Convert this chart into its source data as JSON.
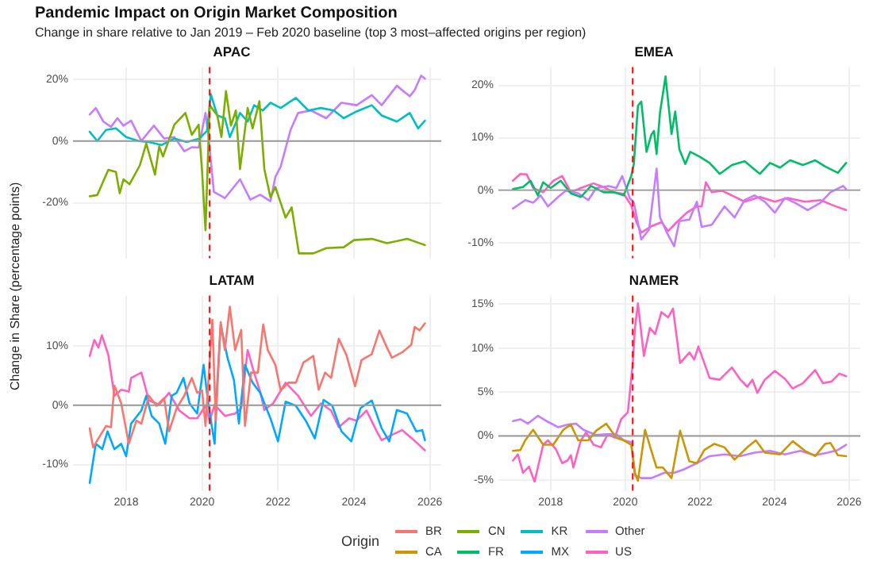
{
  "chart_data": [
    {
      "type": "line",
      "title": "APAC",
      "annotations": [
        "Pandemic Impact on Origin Market Composition",
        "Change in share relative to Jan 2019 – Feb 2020 baseline (top 3 most–affected origins per region)"
      ],
      "ylabel": "Change in Share (percentage points)",
      "legend": "bottom",
      "legend_title": "Origin",
      "grid": true,
      "tick_labels": "y",
      "xlim": [
        2016.6,
        2026.3
      ],
      "xticks": [
        2018,
        2020,
        2022,
        2024,
        2026
      ],
      "ylim": [
        -38,
        24
      ],
      "yticks": [
        {
          "value": -20,
          "label": "-20%"
        },
        {
          "value": 0,
          "label": "0%"
        },
        {
          "value": 20,
          "label": "20%"
        }
      ],
      "ref_lines": [
        {
          "axis": "y",
          "value": 0,
          "color": "#999999",
          "line_style": "solid"
        },
        {
          "axis": "x",
          "value": 2020.2,
          "color": "#ff0000",
          "line_style": "dashed"
        }
      ],
      "series": [
        {
          "name": "CN",
          "color": "#7cae00",
          "x": [
            2017.04,
            2017.24,
            2017.53,
            2017.73,
            2017.83,
            2017.93,
            2018.09,
            2018.36,
            2018.53,
            2018.76,
            2018.87,
            2018.97,
            2019.27,
            2019.56,
            2019.73,
            2019.91,
            2020.0,
            2020.09,
            2020.2,
            2020.4,
            2020.51,
            2020.63,
            2020.76,
            2020.89,
            2021.0,
            2021.2,
            2021.33,
            2021.51,
            2021.64,
            2021.8,
            2021.93,
            2022.2,
            2022.36,
            2022.55,
            2022.93,
            2023.27,
            2023.73,
            2024.0,
            2024.47,
            2024.87,
            2025.4,
            2025.87
          ],
          "values": [
            -17.9,
            -17.5,
            -9.3,
            -10,
            -16.9,
            -12.4,
            -14,
            -7.9,
            -0.8,
            -10.9,
            -1.7,
            -5,
            5.3,
            9.1,
            2,
            5.3,
            -9.9,
            -28.9,
            11.6,
            8.3,
            1.3,
            16.2,
            5,
            9.9,
            -9.1,
            10.7,
            4.1,
            12.9,
            -9.1,
            -18.2,
            -14.9,
            -24.8,
            -21.5,
            -36.4,
            -36.4,
            -34.7,
            -34.4,
            -32.1,
            -31.7,
            -33.1,
            -31.7,
            -33.7
          ]
        },
        {
          "name": "KR",
          "color": "#00bfc4",
          "x": [
            2017.04,
            2017.24,
            2017.47,
            2017.73,
            2018.0,
            2018.33,
            2018.6,
            2018.93,
            2019.27,
            2019.6,
            2019.93,
            2020.13,
            2020.23,
            2020.4,
            2020.6,
            2020.73,
            2021.0,
            2021.2,
            2021.37,
            2021.6,
            2021.8,
            2022.07,
            2022.47,
            2022.8,
            2023.13,
            2023.47,
            2023.73,
            2024.07,
            2024.47,
            2024.73,
            2025.13,
            2025.47,
            2025.69,
            2025.87
          ],
          "values": [
            3,
            0,
            3.6,
            4.1,
            1.3,
            0,
            -0.3,
            -1.3,
            0.8,
            -0.3,
            0.8,
            3.3,
            15.2,
            8.3,
            7.4,
            1.3,
            9.1,
            6.3,
            11.6,
            9.9,
            12.4,
            10.7,
            14,
            9.9,
            10.7,
            9.9,
            7.4,
            9.6,
            11.6,
            8.3,
            6.3,
            9.1,
            4.1,
            6.6
          ]
        },
        {
          "name": "Other",
          "color": "#c77cff",
          "x": [
            2017.04,
            2017.2,
            2017.4,
            2017.6,
            2017.77,
            2017.93,
            2018.13,
            2018.4,
            2018.73,
            2019.0,
            2019.27,
            2019.53,
            2019.73,
            2019.91,
            2020.09,
            2020.17,
            2020.31,
            2020.6,
            2021.0,
            2021.27,
            2021.53,
            2021.8,
            2021.93,
            2022.07,
            2022.33,
            2022.53,
            2022.87,
            2023.27,
            2023.67,
            2024.07,
            2024.47,
            2024.73,
            2025.13,
            2025.47,
            2025.6,
            2025.77,
            2025.87
          ],
          "values": [
            8.6,
            10.7,
            6.3,
            4.6,
            7.4,
            5,
            6.6,
            0,
            5,
            0.8,
            1.3,
            -3.3,
            -2,
            -2.1,
            9.1,
            1.3,
            -16.5,
            -18.5,
            -12.4,
            -19,
            -17.4,
            -19.5,
            -11.6,
            -8.3,
            3.6,
            9.1,
            9.9,
            7.4,
            12.4,
            11.6,
            14.9,
            11.6,
            17.9,
            14.5,
            16.5,
            21.2,
            20.2
          ]
        }
      ]
    },
    {
      "type": "line",
      "title": "EMEA",
      "legend": "bottom",
      "grid": true,
      "tick_labels": "y",
      "xlim": [
        2016.6,
        2026.3
      ],
      "xticks": [
        2018,
        2020,
        2022,
        2024,
        2026
      ],
      "ylim": [
        -13,
        23.5
      ],
      "yticks": [
        {
          "value": -10,
          "label": "-10%"
        },
        {
          "value": 0,
          "label": "0%"
        },
        {
          "value": 10,
          "label": "10%"
        },
        {
          "value": 20,
          "label": "20%"
        }
      ],
      "ref_lines": [
        {
          "axis": "y",
          "value": 0,
          "color": "#999999",
          "line_style": "solid"
        },
        {
          "axis": "x",
          "value": 2020.2,
          "color": "#ff0000",
          "line_style": "dashed"
        }
      ],
      "series": [
        {
          "name": "FR",
          "color": "#00be67",
          "x": [
            2016.99,
            2017.26,
            2017.46,
            2017.66,
            2017.8,
            2018.0,
            2018.27,
            2018.54,
            2018.81,
            2019.08,
            2019.42,
            2019.69,
            2019.96,
            2020.16,
            2020.23,
            2020.34,
            2020.43,
            2020.57,
            2020.7,
            2020.77,
            2020.84,
            2020.93,
            2021.08,
            2021.24,
            2021.34,
            2021.45,
            2021.61,
            2021.74,
            2021.99,
            2022.26,
            2022.53,
            2022.86,
            2023.2,
            2023.61,
            2023.88,
            2024.15,
            2024.42,
            2024.76,
            2025.09,
            2025.36,
            2025.7,
            2025.92
          ],
          "values": [
            0.2,
            0.6,
            1.8,
            -1,
            1.5,
            0.4,
            1.8,
            -0.6,
            -1.3,
            0.8,
            -0.4,
            -0.4,
            -1,
            2.7,
            5,
            16.1,
            16.9,
            7.3,
            10.6,
            11.3,
            6.9,
            14.7,
            21.7,
            10.7,
            15,
            7.8,
            5,
            7.3,
            6.4,
            5.2,
            3.1,
            4.8,
            5.5,
            3.1,
            5.2,
            4.3,
            5.7,
            4.8,
            5.7,
            4.5,
            3.3,
            5.2
          ]
        },
        {
          "name": "Other",
          "color": "#c77cff",
          "x": [
            2016.99,
            2017.32,
            2017.53,
            2017.73,
            2017.93,
            2018.2,
            2018.41,
            2018.74,
            2019.01,
            2019.22,
            2019.55,
            2019.76,
            2019.92,
            2020.12,
            2020.23,
            2020.43,
            2020.64,
            2020.84,
            2020.93,
            2021.11,
            2021.31,
            2021.45,
            2021.72,
            2021.92,
            2022.05,
            2022.32,
            2022.66,
            2022.93,
            2023.2,
            2023.47,
            2023.74,
            2024.01,
            2024.28,
            2024.55,
            2024.89,
            2025.23,
            2025.5,
            2025.84,
            2025.92
          ],
          "values": [
            -3.5,
            -1.9,
            -2.4,
            -1,
            -3.1,
            -1.3,
            -0.1,
            -0.6,
            -1.9,
            0.4,
            0.8,
            0.4,
            2.7,
            -1.5,
            -2.4,
            -9.4,
            -7.5,
            4.1,
            -5.2,
            -8,
            -10.7,
            -5.9,
            -5.6,
            -2.2,
            -7,
            -6.6,
            -3.1,
            -5.2,
            -1.9,
            -1,
            -2.2,
            -4.3,
            -1.5,
            -2.4,
            -3.8,
            -2.4,
            -0.4,
            0.8,
            0.2
          ]
        },
        {
          "name": "US",
          "color": "#ff61c3",
          "x": [
            2016.99,
            2017.19,
            2017.36,
            2017.53,
            2017.8,
            2018.07,
            2018.31,
            2018.54,
            2018.81,
            2019.15,
            2019.42,
            2019.69,
            2019.96,
            2020.16,
            2020.3,
            2020.43,
            2020.7,
            2020.97,
            2021.15,
            2021.38,
            2021.65,
            2021.92,
            2022.05,
            2022.16,
            2022.32,
            2022.59,
            2022.86,
            2023.2,
            2023.61,
            2024.01,
            2024.35,
            2024.82,
            2025.23,
            2025.57,
            2025.92
          ],
          "values": [
            1.8,
            3.1,
            3,
            0.4,
            -0.4,
            1.8,
            2.7,
            -0.4,
            0.4,
            1.3,
            0.6,
            -0.4,
            -0.7,
            -2.9,
            -6.1,
            -8.1,
            -6.9,
            -6.1,
            -7.8,
            -6.1,
            -4.3,
            -3.1,
            -3.1,
            1.5,
            -0.4,
            -0.1,
            -1,
            -2.2,
            -1.3,
            -2.2,
            -1.5,
            -2.2,
            -1.9,
            -2.9,
            -3.8
          ]
        }
      ]
    },
    {
      "type": "line",
      "title": "LATAM",
      "legend": "bottom",
      "grid": true,
      "xlim": [
        2016.6,
        2026.3
      ],
      "xticks": [
        2018,
        2020,
        2022,
        2024,
        2026
      ],
      "ylim": [
        -14.5,
        18.5
      ],
      "yticks": [
        {
          "value": -10,
          "label": "-10%"
        },
        {
          "value": 0,
          "label": "0%"
        },
        {
          "value": 10,
          "label": "10%"
        }
      ],
      "ref_lines": [
        {
          "axis": "y",
          "value": 0,
          "color": "#999999",
          "line_style": "solid"
        },
        {
          "axis": "x",
          "value": 2020.2,
          "color": "#ff0000",
          "line_style": "dashed"
        }
      ],
      "series": [
        {
          "name": "BR",
          "color": "#f8766d",
          "x": [
            2017.04,
            2017.13,
            2017.27,
            2017.47,
            2017.6,
            2017.69,
            2017.87,
            2018.07,
            2018.27,
            2018.4,
            2018.6,
            2018.8,
            2019.0,
            2019.13,
            2019.33,
            2019.53,
            2019.73,
            2019.87,
            2020.0,
            2020.09,
            2020.27,
            2020.36,
            2020.49,
            2020.6,
            2020.73,
            2020.87,
            2021.03,
            2021.13,
            2021.29,
            2021.47,
            2021.61,
            2021.73,
            2021.93,
            2022.07,
            2022.27,
            2022.47,
            2022.67,
            2022.93,
            2023.07,
            2023.24,
            2023.4,
            2023.6,
            2023.8,
            2024.03,
            2024.2,
            2024.47,
            2024.67,
            2024.87,
            2025.0,
            2025.27,
            2025.51,
            2025.6,
            2025.73,
            2025.87
          ],
          "values": [
            -3.9,
            -7.1,
            -5.6,
            -3.5,
            -3.7,
            3.3,
            0.3,
            -6.5,
            -2.6,
            -3.1,
            1.6,
            -0.1,
            1.2,
            -4.4,
            -0.5,
            1.6,
            4.6,
            2.1,
            2.5,
            -3.5,
            14.4,
            -2.6,
            14,
            9.3,
            16.6,
            9.3,
            12.7,
            -3.5,
            5.5,
            5.5,
            13.6,
            9.3,
            6.8,
            2.5,
            3.8,
            3.8,
            7.2,
            8.3,
            2.6,
            5.5,
            4.6,
            11.2,
            8.5,
            3.2,
            7.6,
            8.6,
            12.6,
            9.7,
            8,
            8.9,
            10.2,
            13.2,
            12.6,
            13.8
          ]
        },
        {
          "name": "MX",
          "color": "#00a9ff",
          "x": [
            2017.04,
            2017.2,
            2017.37,
            2017.51,
            2017.69,
            2017.87,
            2018.0,
            2018.13,
            2018.4,
            2018.53,
            2018.67,
            2018.87,
            2019.03,
            2019.2,
            2019.33,
            2019.51,
            2019.67,
            2019.87,
            2020.04,
            2020.17,
            2020.33,
            2020.4,
            2020.49,
            2020.67,
            2020.84,
            2020.97,
            2021.13,
            2021.33,
            2021.53,
            2021.8,
            2022.0,
            2022.2,
            2022.47,
            2022.73,
            2022.97,
            2023.2,
            2023.43,
            2023.67,
            2023.93,
            2024.17,
            2024.47,
            2024.73,
            2024.93,
            2025.13,
            2025.4,
            2025.64,
            2025.8,
            2025.87
          ],
          "values": [
            -13.1,
            -6.5,
            -7.4,
            -4.4,
            -7.4,
            -6.5,
            -8.6,
            -3.1,
            -0.9,
            1.6,
            -1.8,
            -3.1,
            -6.5,
            1.6,
            2.1,
            4.6,
            0.3,
            -1.4,
            6.8,
            -0.1,
            -6.5,
            3.8,
            13.6,
            8,
            4.2,
            -3.1,
            6.8,
            3.8,
            2.1,
            -2.2,
            -6.1,
            0.6,
            -0.1,
            -2.6,
            -5.6,
            0.9,
            -0.1,
            -4.4,
            -6.1,
            -0.5,
            0.8,
            -3.9,
            -6.1,
            -0.8,
            -1.4,
            -4.4,
            -4.2,
            -5.9
          ]
        },
        {
          "name": "US",
          "color": "#ff61c3",
          "x": [
            2017.04,
            2017.16,
            2017.27,
            2017.36,
            2017.53,
            2017.69,
            2017.87,
            2018.07,
            2018.13,
            2018.4,
            2018.6,
            2018.87,
            2019.13,
            2019.4,
            2019.67,
            2019.87,
            2020.09,
            2020.2,
            2020.33,
            2020.6,
            2020.87,
            2021.03,
            2021.2,
            2021.37,
            2021.53,
            2021.64,
            2021.87,
            2022.2,
            2022.53,
            2022.87,
            2023.13,
            2023.4,
            2023.6,
            2023.87,
            2024.07,
            2024.33,
            2024.6,
            2024.73,
            2025.0,
            2025.27,
            2025.53,
            2025.87
          ],
          "values": [
            8.3,
            11,
            9.7,
            11.8,
            8.5,
            1.6,
            2.6,
            2.3,
            4.6,
            5.5,
            0.8,
            0.1,
            2.1,
            -0.9,
            -2.2,
            -2.2,
            -0.1,
            -2.6,
            0.1,
            -1.8,
            -1.4,
            -0.5,
            9.3,
            5.5,
            2.3,
            -0.8,
            0.3,
            3.8,
            1.6,
            -1.8,
            0.3,
            -0.9,
            -3.7,
            -2.2,
            -2.6,
            -0.9,
            -4.4,
            -5.9,
            -5,
            -4.2,
            -5.6,
            -7.6
          ]
        }
      ]
    },
    {
      "type": "line",
      "title": "NAMER",
      "legend": "bottom",
      "grid": true,
      "xlim": [
        2016.6,
        2026.3
      ],
      "xticks": [
        2018,
        2020,
        2022,
        2024,
        2026
      ],
      "ylim": [
        -6.3,
        16
      ],
      "yticks": [
        {
          "value": -5,
          "label": "-5%"
        },
        {
          "value": 0,
          "label": "0%"
        },
        {
          "value": 5,
          "label": "5%"
        },
        {
          "value": 10,
          "label": "10%"
        },
        {
          "value": 15,
          "label": "15%"
        }
      ],
      "ref_lines": [
        {
          "axis": "y",
          "value": 0,
          "color": "#999999",
          "line_style": "solid"
        },
        {
          "axis": "x",
          "value": 2020.2,
          "color": "#ff0000",
          "line_style": "dashed"
        }
      ],
      "series": [
        {
          "name": "CA",
          "color": "#cd9600",
          "x": [
            2016.99,
            2017.19,
            2017.32,
            2017.53,
            2017.8,
            2018.07,
            2018.34,
            2018.54,
            2018.74,
            2019.01,
            2019.22,
            2019.49,
            2019.76,
            2019.96,
            2020.16,
            2020.26,
            2020.34,
            2020.53,
            2020.7,
            2020.84,
            2021.01,
            2021.24,
            2021.47,
            2021.72,
            2021.92,
            2022.12,
            2022.39,
            2022.66,
            2022.93,
            2023.27,
            2023.5,
            2023.74,
            2024.15,
            2024.49,
            2024.82,
            2025.09,
            2025.36,
            2025.5,
            2025.7,
            2025.92
          ],
          "values": [
            -1.7,
            -1.6,
            -0.5,
            0.7,
            -1,
            -1,
            0.7,
            1.3,
            -0.5,
            -0.5,
            0.6,
            1.4,
            -0.2,
            -0.5,
            -1,
            -4.2,
            -5.1,
            0.7,
            -1.7,
            -3.6,
            -3.6,
            -4.8,
            0.6,
            -2.9,
            -3.1,
            -1.6,
            -0.9,
            -1.3,
            -2.7,
            -1.3,
            -0.5,
            -1.9,
            -2.1,
            -0.6,
            -1.7,
            -2.3,
            -0.9,
            -0.8,
            -2.2,
            -2.3
          ]
        },
        {
          "name": "Other",
          "color": "#c77cff",
          "x": [
            2016.99,
            2017.19,
            2017.39,
            2017.66,
            2017.93,
            2018.2,
            2018.47,
            2018.68,
            2018.88,
            2019.22,
            2019.49,
            2019.76,
            2019.96,
            2020.16,
            2020.26,
            2020.43,
            2020.7,
            2021.04,
            2021.31,
            2021.58,
            2021.92,
            2022.26,
            2022.66,
            2023.07,
            2023.47,
            2023.88,
            2024.28,
            2024.69,
            2025.09,
            2025.43,
            2025.7,
            2025.92
          ],
          "values": [
            1.7,
            1.9,
            1.4,
            2.3,
            1.6,
            1,
            1.3,
            1.4,
            0.7,
            0.1,
            0.2,
            0.2,
            -0.5,
            -0.7,
            -4.5,
            -4.8,
            -4.8,
            -4.2,
            -4.2,
            -3.8,
            -3.1,
            -2.3,
            -2.1,
            -2.3,
            -1.9,
            -1.7,
            -2.1,
            -1.7,
            -2.2,
            -1.9,
            -1.6,
            -1
          ]
        },
        {
          "name": "US",
          "color": "#ff61c3",
          "x": [
            2016.99,
            2017.12,
            2017.26,
            2017.42,
            2017.57,
            2017.8,
            2017.93,
            2018.14,
            2018.31,
            2018.45,
            2018.54,
            2018.61,
            2018.81,
            2018.95,
            2019.15,
            2019.35,
            2019.53,
            2019.72,
            2019.89,
            2020.07,
            2020.2,
            2020.26,
            2020.34,
            2020.5,
            2020.66,
            2020.8,
            2020.97,
            2021.15,
            2021.28,
            2021.47,
            2021.72,
            2021.85,
            2021.96,
            2022.26,
            2022.53,
            2022.86,
            2023.07,
            2023.27,
            2023.41,
            2023.54,
            2023.74,
            2024.01,
            2024.28,
            2024.49,
            2024.76,
            2025.09,
            2025.3,
            2025.53,
            2025.74,
            2025.92
          ],
          "values": [
            -2.8,
            -2.1,
            -4.2,
            -3.5,
            -5.2,
            -1,
            -0.5,
            -1.5,
            -3.1,
            -2.8,
            -2.2,
            -3.6,
            -0.5,
            0.4,
            -1,
            -1.3,
            0.2,
            -0.2,
            1.9,
            2.7,
            8.2,
            12.3,
            15.1,
            9.1,
            12.3,
            11.6,
            14.1,
            13.5,
            14.5,
            8.3,
            9.5,
            8.7,
            10.2,
            6.6,
            6.4,
            7.8,
            6.5,
            5.6,
            6.4,
            4.9,
            6.4,
            7.4,
            6.5,
            5.4,
            6,
            7.5,
            6,
            6.2,
            7.1,
            6.8
          ]
        }
      ]
    }
  ]
}
